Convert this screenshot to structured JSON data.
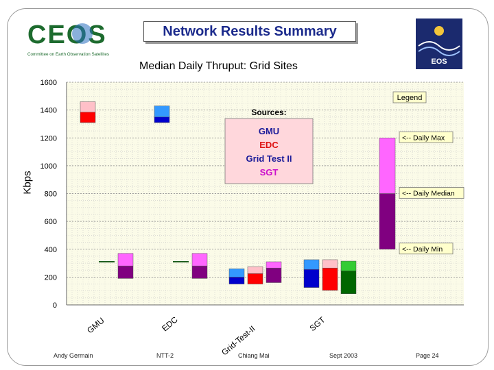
{
  "slide": {
    "title": "Network Results Summary",
    "subtitle": "Median Daily Thruput: Grid Sites",
    "logo_left": {
      "big": "CEOS",
      "tagline": "Committee on Earth Observation Satellites"
    },
    "logo_right": {
      "text": "EOS"
    },
    "footer": {
      "author": "Andy Germain",
      "meeting": "NTT-2",
      "location": "Chiang Mai",
      "date": "Sept 2003",
      "page": "Page 24"
    }
  },
  "chart_data": {
    "type": "bar",
    "ylabel": "Kbps",
    "ylim": [
      0,
      1600
    ],
    "yticks": [
      0,
      200,
      400,
      600,
      800,
      1000,
      1200,
      1400,
      1600
    ],
    "grid": true,
    "categories": [
      "GMU",
      "EDC",
      "Grid-Test-II",
      "SGT"
    ],
    "source_colors": {
      "GMU": "#1a1a99",
      "EDC": "#dd1111",
      "Grid Test II": "#1a1a99",
      "SGT": "#cc11cc"
    },
    "groups": [
      {
        "category": "GMU",
        "bars": [
          {
            "source": "EDC",
            "min": 1310,
            "median": 1385,
            "max": 1460,
            "low_color": "#ff0000",
            "high_color": "#ffc0c8"
          },
          {
            "source": "SGT",
            "min": 190,
            "median": 280,
            "max": 370,
            "low_color": "#800080",
            "high_color": "#ff66ff"
          }
        ],
        "lines": [
          {
            "value": 310,
            "color": "#1f5f1f"
          }
        ]
      },
      {
        "category": "EDC",
        "bars": [
          {
            "source": "GMU",
            "min": 1310,
            "median": 1350,
            "max": 1430,
            "low_color": "#0000cc",
            "high_color": "#3399ff"
          },
          {
            "source": "SGT",
            "min": 190,
            "median": 280,
            "max": 370,
            "low_color": "#800080",
            "high_color": "#ff66ff"
          }
        ],
        "lines": [
          {
            "value": 310,
            "color": "#1f5f1f"
          }
        ]
      },
      {
        "category": "Grid-Test-II",
        "bars": [
          {
            "source": "GMU",
            "min": 150,
            "median": 200,
            "max": 260,
            "low_color": "#0000cc",
            "high_color": "#3399ff"
          },
          {
            "source": "EDC",
            "min": 150,
            "median": 225,
            "max": 275,
            "low_color": "#ff0000",
            "high_color": "#ffc0c8"
          },
          {
            "source": "SGT",
            "min": 160,
            "median": 265,
            "max": 310,
            "low_color": "#800080",
            "high_color": "#ff66ff"
          }
        ],
        "lines": []
      },
      {
        "category": "SGT",
        "bars": [
          {
            "source": "GMU",
            "min": 125,
            "median": 255,
            "max": 325,
            "low_color": "#0000cc",
            "high_color": "#3399ff"
          },
          {
            "source": "EDC",
            "min": 105,
            "median": 265,
            "max": 325,
            "low_color": "#ff0000",
            "high_color": "#ffc0c8"
          },
          {
            "source": "Grid Test II",
            "min": 80,
            "median": 245,
            "max": 315,
            "low_color": "#006600",
            "high_color": "#33cc33"
          }
        ],
        "lines": []
      }
    ],
    "sources_box": {
      "title": "Sources:",
      "items": [
        {
          "label": "GMU",
          "color": "#1a1a99"
        },
        {
          "label": "EDC",
          "color": "#dd1111"
        },
        {
          "label": "Grid Test II",
          "color": "#1a1a99"
        },
        {
          "label": "SGT",
          "color": "#cc11cc"
        }
      ]
    },
    "legend": {
      "title": "Legend",
      "example": {
        "min": 400,
        "median": 800,
        "max": 1200,
        "low_color": "#800080",
        "high_color": "#ff66ff"
      },
      "labels": [
        {
          "text": "<-- Daily Max",
          "value": 1200
        },
        {
          "text": "<-- Daily Median",
          "value": 800
        },
        {
          "text": "<-- Daily Min",
          "value": 400
        }
      ]
    }
  }
}
